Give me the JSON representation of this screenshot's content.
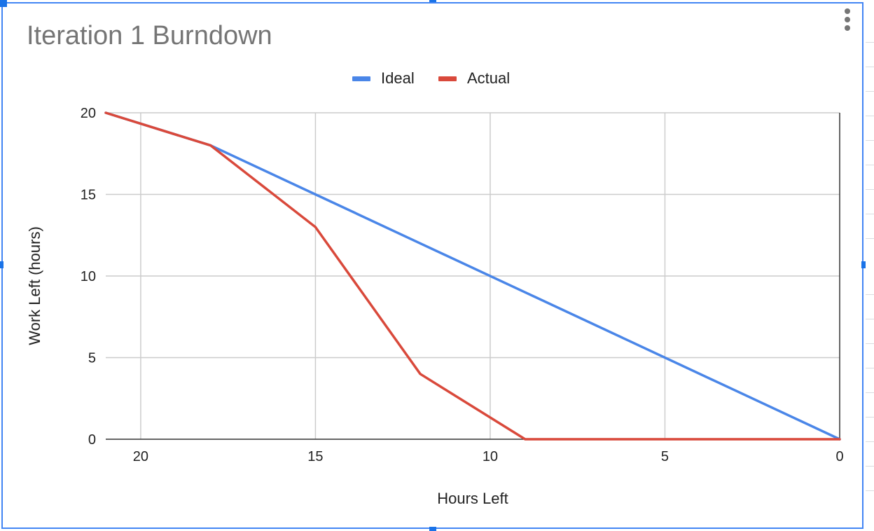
{
  "chart_data": {
    "type": "line",
    "title": "Iteration 1 Burndown",
    "xlabel": "Hours Left",
    "ylabel": "Work Left (hours)",
    "x_reversed": true,
    "xlim": [
      21,
      0
    ],
    "ylim": [
      0,
      20
    ],
    "x_ticks": [
      20,
      15,
      10,
      5,
      0
    ],
    "y_ticks": [
      0,
      5,
      10,
      15,
      20
    ],
    "grid": true,
    "legend_position": "top",
    "series": [
      {
        "name": "Ideal",
        "color": "#4a86e8",
        "x": [
          21,
          18,
          15,
          12,
          9,
          6,
          3,
          0
        ],
        "y": [
          20,
          18,
          15,
          12,
          9,
          6,
          3,
          0
        ]
      },
      {
        "name": "Actual",
        "color": "#d9493b",
        "x": [
          21,
          18,
          15,
          12,
          9,
          6,
          3,
          0
        ],
        "y": [
          20,
          18,
          13,
          4,
          0,
          0,
          0,
          0
        ]
      }
    ]
  },
  "icons": {
    "menu": "more-vert-icon"
  }
}
